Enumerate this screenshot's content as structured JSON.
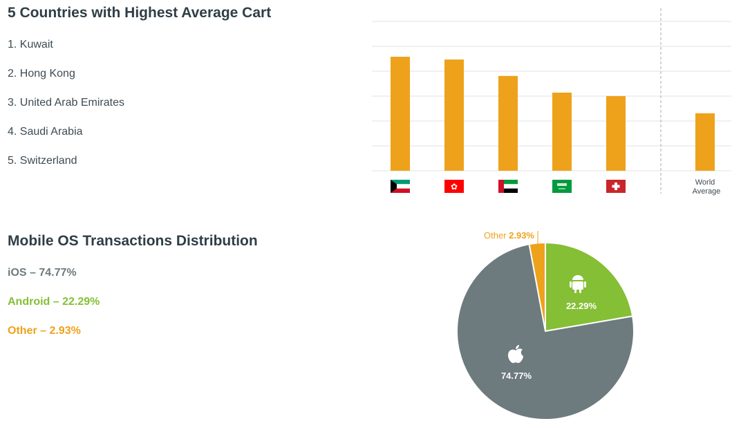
{
  "colors": {
    "bar": "#eea21b",
    "ios": "#6d7a7e",
    "android": "#84bf35",
    "other": "#eea21b",
    "grid": "#e0e0e0",
    "text": "#2f3e46"
  },
  "cart_section": {
    "title": "5 Countries with Highest Average Cart",
    "ranking": [
      "1. Kuwait",
      "2. Hong Kong",
      "3. United Arab Emirates",
      "4. Saudi Arabia",
      "5. Switzerland"
    ]
  },
  "os_section": {
    "title": "Mobile OS Transactions Distribution",
    "legend": [
      {
        "label": "iOS – 74.77%",
        "color": "#6d7a7e"
      },
      {
        "label": "Android – 22.29%",
        "color": "#84bf35"
      },
      {
        "label": "Other – 2.93%",
        "color": "#eea21b"
      }
    ]
  },
  "chart_data": [
    {
      "type": "bar",
      "categories": [
        "Kuwait",
        "Hong Kong",
        "United Arab Emirates",
        "Saudi Arabia",
        "Switzerland",
        "World Average"
      ],
      "category_icons": [
        "flag-kuwait",
        "flag-hong-kong",
        "flag-uae",
        "flag-saudi-arabia",
        "flag-switzerland",
        null
      ],
      "tick_labels": [
        "",
        "",
        "",
        "",
        "",
        "World Average"
      ],
      "values": [
        4.58,
        4.47,
        3.81,
        3.14,
        3.0,
        2.31
      ],
      "ylim": [
        0,
        6
      ],
      "grid": true,
      "y_tick_labels": "none",
      "separator": "dashed line before World Average"
    },
    {
      "type": "pie",
      "slices": [
        {
          "name": "Android",
          "value": 22.29,
          "label": "22.29%",
          "icon": "android-icon",
          "color": "#84bf35"
        },
        {
          "name": "iOS",
          "value": 74.77,
          "label": "74.77%",
          "icon": "apple-icon",
          "color": "#6d7a7e"
        },
        {
          "name": "Other",
          "value": 2.93,
          "label_prefix": "Other",
          "label": "2.93%",
          "color": "#eea21b"
        }
      ]
    }
  ]
}
